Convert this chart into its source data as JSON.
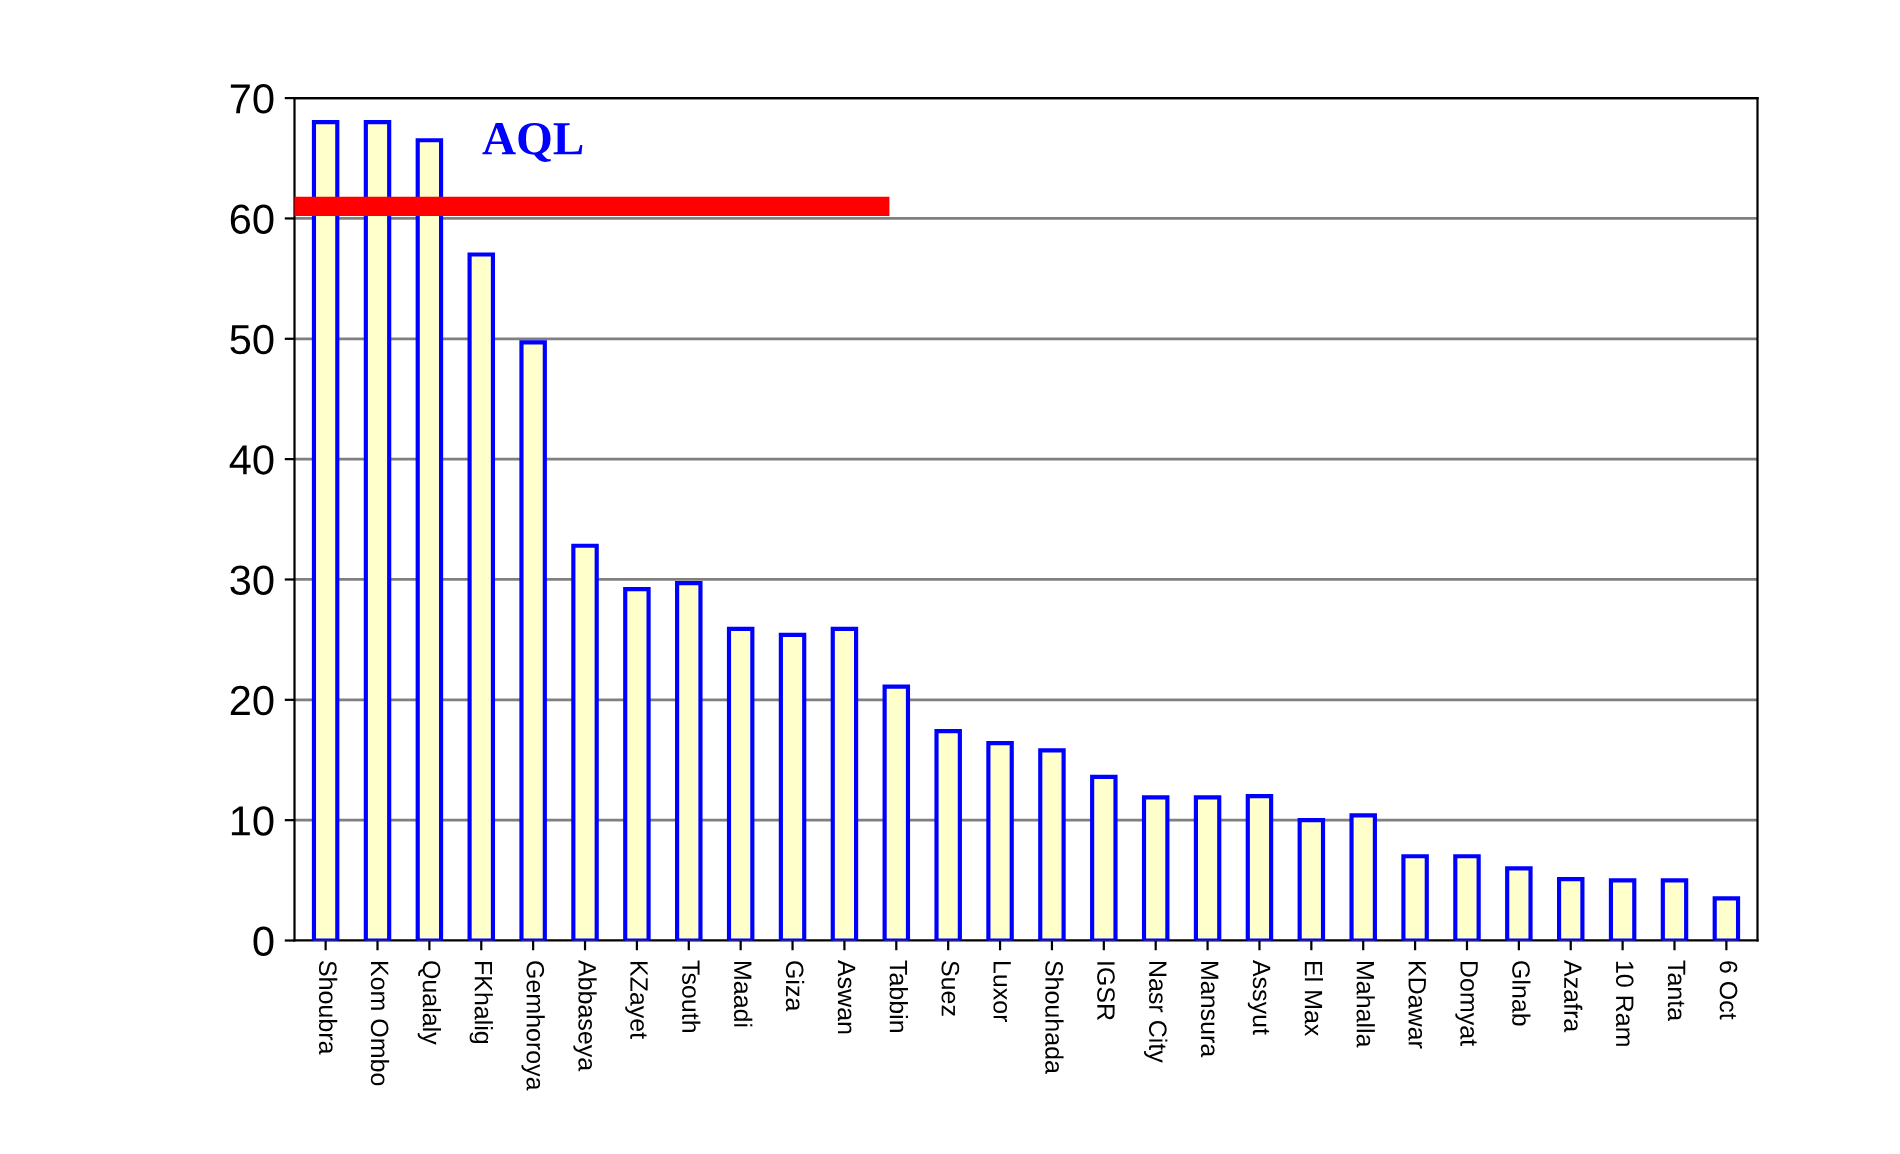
{
  "chart_data": {
    "type": "bar",
    "categories": [
      "Shoubra",
      "Kom Ombo",
      "Qualaly",
      "FKhalig",
      "Gemhoroya",
      "Abbaseya",
      "KZayet",
      "Tsouth",
      "Maadi",
      "Giza",
      "Aswan",
      "Tabbin",
      "Suez",
      "Luxor",
      "Shouhada",
      "IGSR",
      "Nasr City",
      "Mansura",
      "Assyut",
      "El Max",
      "Mahalla",
      "KDawar",
      "Domyat",
      "Glnab",
      "Azafra",
      "10 Ram",
      "Tanta",
      "6 Oct"
    ],
    "values": [
      68,
      68,
      66.5,
      57,
      49.7,
      32.8,
      29.2,
      29.7,
      25.9,
      25.4,
      25.9,
      21.1,
      17.4,
      16.4,
      15.8,
      13.6,
      11.9,
      11.9,
      12,
      10,
      10.4,
      7,
      7,
      6,
      5.1,
      5,
      5,
      3.5
    ],
    "color": "#ffffcc",
    "ylim": [
      0,
      70
    ],
    "yticks": [
      0,
      10,
      20,
      30,
      40,
      50,
      60,
      70
    ],
    "grid": "y",
    "ref_lines": [
      {
        "axis": "y",
        "value": 61,
        "label": "AQL",
        "color": "#ff0000"
      }
    ]
  }
}
